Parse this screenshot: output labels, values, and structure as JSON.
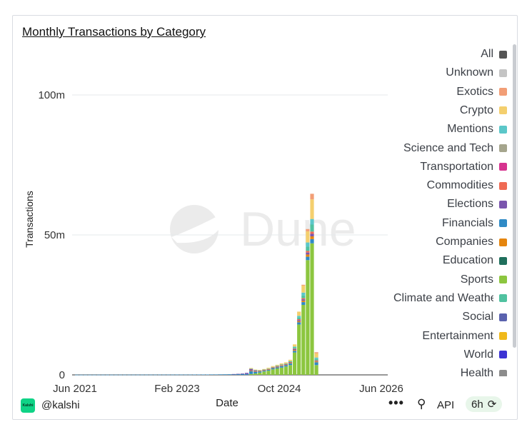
{
  "title": "Monthly Transactions by Category",
  "watermark": "Dune",
  "footer": {
    "handle": "@kalshi",
    "logo_text": "Kalshi",
    "more": "•••",
    "api": "API",
    "refresh_age": "6h",
    "refresh_icon": "refresh-icon",
    "api_icon": "api-icon"
  },
  "legend": [
    {
      "name": "All",
      "color": "#555555"
    },
    {
      "name": "Unknown",
      "color": "#c4c4c4"
    },
    {
      "name": "Exotics",
      "color": "#f29e76"
    },
    {
      "name": "Crypto",
      "color": "#f4cf6e"
    },
    {
      "name": "Mentions",
      "color": "#5bc7c9"
    },
    {
      "name": "Science and Tech",
      "color": "#a5a58d"
    },
    {
      "name": "Transportation",
      "color": "#d6338f"
    },
    {
      "name": "Commodities",
      "color": "#ef6a54"
    },
    {
      "name": "Elections",
      "color": "#7a55ad"
    },
    {
      "name": "Financials",
      "color": "#2f8ac5"
    },
    {
      "name": "Companies",
      "color": "#e5850e"
    },
    {
      "name": "Education",
      "color": "#1f6f5c"
    },
    {
      "name": "Sports",
      "color": "#8cc63f"
    },
    {
      "name": "Climate and Weather",
      "color": "#50c2a0"
    },
    {
      "name": "Social",
      "color": "#5a62ae"
    },
    {
      "name": "Entertainment",
      "color": "#f0b91b"
    },
    {
      "name": "World",
      "color": "#3c33d3"
    },
    {
      "name": "Health",
      "color": "#8c8c8c"
    }
  ],
  "chart_data": {
    "type": "bar",
    "stacked": true,
    "title": "Monthly Transactions by Category",
    "xlabel": "Date",
    "ylabel": "Transactions",
    "xticks": [
      "Jun 2021",
      "Feb 2023",
      "Oct 2024",
      "Jun 2026"
    ],
    "yticks": [
      "0",
      "50m",
      "100m"
    ],
    "ylim": [
      0,
      100000000
    ],
    "grid": true,
    "legend_position": "right",
    "categories": [
      "Jun 2021",
      "Jul 2021",
      "Aug 2021",
      "Sep 2021",
      "Oct 2021",
      "Nov 2021",
      "Dec 2021",
      "Jan 2022",
      "Feb 2022",
      "Mar 2022",
      "Apr 2022",
      "May 2022",
      "Jun 2022",
      "Jul 2022",
      "Aug 2022",
      "Sep 2022",
      "Oct 2022",
      "Nov 2022",
      "Dec 2022",
      "Jan 2023",
      "Feb 2023",
      "Mar 2023",
      "Apr 2023",
      "May 2023",
      "Jun 2023",
      "Jul 2023",
      "Aug 2023",
      "Sep 2023",
      "Oct 2023",
      "Nov 2023",
      "Dec 2023",
      "Jan 2024",
      "Feb 2024",
      "Mar 2024",
      "Apr 2024",
      "May 2024",
      "Jun 2024",
      "Jul 2024",
      "Aug 2024",
      "Sep 2024",
      "Oct 2024",
      "Nov 2024",
      "Dec 2024",
      "Jan 2025",
      "Feb 2025",
      "Mar 2025",
      "Apr 2025",
      "May 2025",
      "Jun 2025",
      "Jul 2025",
      "Aug 2025",
      "Sep 2025",
      "Oct 2025",
      "Nov 2025",
      "Dec 2025",
      "Jan 2026"
    ],
    "series": [
      {
        "name": "Sports",
        "color": "#8cc63f",
        "values": [
          0,
          0,
          0,
          0,
          0,
          0,
          0,
          0,
          0,
          0,
          0,
          0,
          0,
          0,
          0,
          0,
          0,
          0,
          0,
          0,
          0,
          0,
          0,
          0,
          0,
          0,
          0,
          0,
          0,
          0,
          0,
          0,
          0,
          0,
          0,
          0,
          0,
          0,
          0,
          0,
          300000,
          500000,
          800000,
          1200000,
          1500000,
          2000000,
          2300000,
          2600000,
          3000000,
          3500000,
          8000000,
          18000000,
          25000000,
          41000000,
          47000000,
          3500000
        ]
      },
      {
        "name": "Financials",
        "color": "#2f8ac5",
        "values": [
          50000,
          50000,
          50000,
          50000,
          50000,
          60000,
          60000,
          60000,
          60000,
          60000,
          70000,
          70000,
          70000,
          70000,
          70000,
          80000,
          80000,
          80000,
          80000,
          90000,
          90000,
          90000,
          90000,
          100000,
          100000,
          100000,
          100000,
          120000,
          120000,
          130000,
          130000,
          150000,
          150000,
          180000,
          200000,
          220000,
          250000,
          280000,
          300000,
          320000,
          1000000,
          600000,
          400000,
          300000,
          300000,
          400000,
          400000,
          500000,
          500000,
          600000,
          600000,
          800000,
          1000000,
          1200000,
          1500000,
          1000000
        ]
      },
      {
        "name": "Companies",
        "color": "#e5850e",
        "values": [
          0,
          0,
          0,
          0,
          0,
          0,
          0,
          0,
          0,
          0,
          0,
          0,
          0,
          0,
          0,
          0,
          0,
          0,
          0,
          0,
          0,
          0,
          0,
          0,
          0,
          0,
          0,
          0,
          0,
          0,
          0,
          0,
          0,
          0,
          0,
          0,
          0,
          0,
          0,
          0,
          200000,
          150000,
          150000,
          150000,
          150000,
          150000,
          200000,
          200000,
          200000,
          200000,
          300000,
          400000,
          500000,
          800000,
          1000000,
          300000
        ]
      },
      {
        "name": "Elections",
        "color": "#7a55ad",
        "values": [
          0,
          0,
          0,
          0,
          0,
          0,
          0,
          0,
          0,
          0,
          0,
          0,
          0,
          0,
          0,
          0,
          0,
          0,
          0,
          0,
          0,
          0,
          0,
          0,
          0,
          0,
          0,
          0,
          0,
          0,
          0,
          0,
          0,
          0,
          0,
          0,
          50000,
          100000,
          200000,
          400000,
          600000,
          300000,
          100000,
          100000,
          100000,
          100000,
          100000,
          100000,
          100000,
          200000,
          300000,
          400000,
          500000,
          700000,
          900000,
          200000
        ]
      },
      {
        "name": "Commodities",
        "color": "#ef6a54",
        "values": [
          0,
          0,
          0,
          0,
          0,
          0,
          0,
          0,
          0,
          0,
          0,
          0,
          0,
          0,
          0,
          0,
          0,
          0,
          0,
          0,
          0,
          0,
          0,
          0,
          0,
          0,
          0,
          0,
          0,
          0,
          0,
          0,
          0,
          0,
          0,
          0,
          0,
          0,
          0,
          0,
          50000,
          50000,
          50000,
          50000,
          50000,
          50000,
          100000,
          100000,
          100000,
          100000,
          200000,
          300000,
          400000,
          600000,
          800000,
          200000
        ]
      },
      {
        "name": "Climate and Weather",
        "color": "#50c2a0",
        "values": [
          0,
          0,
          0,
          0,
          0,
          0,
          0,
          0,
          0,
          0,
          0,
          0,
          0,
          0,
          0,
          0,
          0,
          0,
          0,
          0,
          0,
          0,
          0,
          0,
          0,
          0,
          0,
          0,
          0,
          0,
          0,
          0,
          0,
          0,
          0,
          0,
          0,
          0,
          0,
          0,
          100000,
          100000,
          100000,
          100000,
          150000,
          150000,
          200000,
          200000,
          200000,
          300000,
          500000,
          700000,
          1000000,
          1500000,
          2500000,
          500000
        ]
      },
      {
        "name": "Mentions",
        "color": "#5bc7c9",
        "values": [
          0,
          0,
          0,
          0,
          0,
          0,
          0,
          0,
          0,
          0,
          0,
          0,
          0,
          0,
          0,
          0,
          0,
          0,
          0,
          0,
          0,
          0,
          0,
          0,
          0,
          0,
          0,
          0,
          0,
          0,
          0,
          0,
          0,
          0,
          0,
          0,
          0,
          0,
          0,
          0,
          0,
          0,
          0,
          0,
          0,
          0,
          0,
          0,
          0,
          0,
          200000,
          500000,
          1000000,
          1500000,
          2000000,
          500000
        ]
      },
      {
        "name": "Crypto",
        "color": "#f4cf6e",
        "values": [
          0,
          0,
          0,
          0,
          0,
          0,
          0,
          0,
          0,
          0,
          0,
          0,
          0,
          0,
          0,
          0,
          0,
          0,
          0,
          0,
          0,
          0,
          0,
          0,
          0,
          0,
          0,
          0,
          0,
          0,
          0,
          0,
          0,
          0,
          0,
          0,
          0,
          0,
          0,
          0,
          200000,
          200000,
          200000,
          200000,
          300000,
          300000,
          300000,
          400000,
          400000,
          500000,
          800000,
          1500000,
          2500000,
          4000000,
          7000000,
          1500000
        ]
      },
      {
        "name": "Exotics",
        "color": "#f29e76",
        "values": [
          0,
          0,
          0,
          0,
          0,
          0,
          0,
          0,
          0,
          0,
          0,
          0,
          0,
          0,
          0,
          0,
          0,
          0,
          0,
          0,
          0,
          0,
          0,
          0,
          0,
          0,
          0,
          0,
          0,
          0,
          0,
          0,
          0,
          0,
          0,
          0,
          0,
          0,
          0,
          0,
          0,
          0,
          0,
          0,
          0,
          0,
          0,
          0,
          0,
          0,
          0,
          0,
          300000,
          800000,
          2000000,
          400000
        ]
      }
    ],
    "bars_right_panel_note": ""
  }
}
